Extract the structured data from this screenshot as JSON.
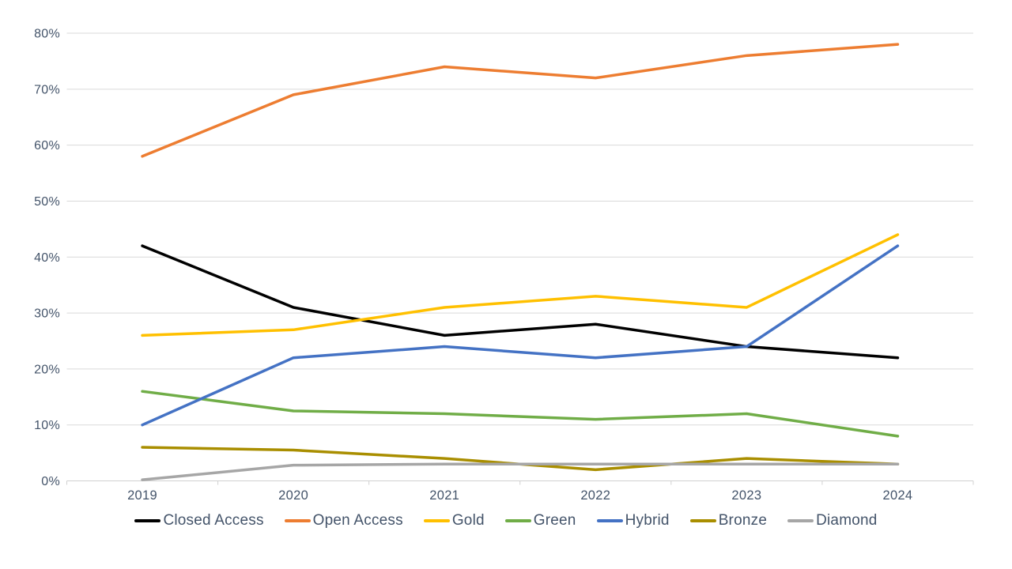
{
  "chart_data": {
    "type": "line",
    "title": "",
    "categories": [
      "2019",
      "2020",
      "2021",
      "2022",
      "2023",
      "2024"
    ],
    "series": [
      {
        "name": "Closed Access",
        "color": "#000000",
        "values": [
          42,
          31,
          26,
          28,
          24,
          22
        ]
      },
      {
        "name": "Open Access",
        "color": "#ED7D31",
        "values": [
          58,
          69,
          74,
          72,
          76,
          78
        ]
      },
      {
        "name": "Gold",
        "color": "#FFC000",
        "values": [
          26,
          27,
          31,
          33,
          31,
          44
        ]
      },
      {
        "name": "Green",
        "color": "#70AD47",
        "values": [
          16,
          12.5,
          12,
          11,
          12,
          8
        ]
      },
      {
        "name": "Hybrid",
        "color": "#4472C4",
        "values": [
          10,
          22,
          24,
          22,
          24,
          42
        ]
      },
      {
        "name": "Bronze",
        "color": "#A98E00",
        "values": [
          6,
          5.5,
          4,
          2,
          4,
          3
        ]
      },
      {
        "name": "Diamond",
        "color": "#A6A6A6",
        "values": [
          0.2,
          2.8,
          3,
          3,
          3,
          3
        ]
      }
    ],
    "xlabel": "",
    "ylabel": "",
    "y_axis": {
      "min": 0,
      "max": 80,
      "step": 10,
      "tick_labels": [
        "0%",
        "10%",
        "20%",
        "30%",
        "40%",
        "50%",
        "60%",
        "70%",
        "80%"
      ]
    },
    "grid": true,
    "legend_position": "bottom",
    "colors": {
      "text": "#44546A",
      "gridline": "#D9D9D9",
      "axis_line": "#D0D0D0",
      "background": "#FFFFFF"
    }
  }
}
